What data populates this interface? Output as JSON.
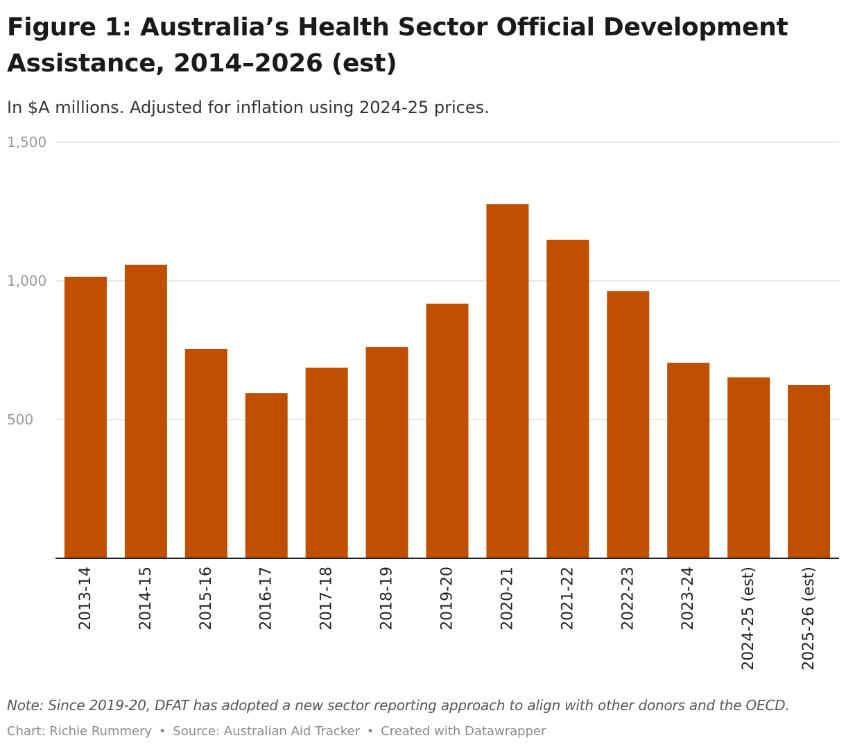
{
  "title": "Figure 1: Australia’s Health Sector Official Development Assistance, 2014–2026 (est)",
  "subtitle": "In $A millions. Adjusted for inflation using 2024-25 prices.",
  "note": "Note: Since 2019-20, DFAT has adopted a new sector reporting approach to align with other donors and the OECD.",
  "credit": {
    "chart": "Chart: Richie Rummery",
    "source": "Source: Australian Aid Tracker",
    "tool": "Created with Datawrapper",
    "separator": "•"
  },
  "colors": {
    "bar": "#c05000",
    "grid": "#e0e0e0",
    "axis": "#222222",
    "tick_label": "#999999",
    "category_label": "#222222"
  },
  "chart_data": {
    "type": "bar",
    "title": "Figure 1: Australia’s Health Sector Official Development Assistance, 2014–2026 (est)",
    "xlabel": "",
    "ylabel": "",
    "ylim": [
      0,
      1500
    ],
    "yticks": [
      500,
      1000,
      1500
    ],
    "ytick_labels": [
      "500",
      "1,000",
      "1,500"
    ],
    "grid": true,
    "legend": "none",
    "categories": [
      "2013-14",
      "2014-15",
      "2015-16",
      "2016-17",
      "2017-18",
      "2018-19",
      "2019-20",
      "2020-21",
      "2021-22",
      "2022-23",
      "2023-24",
      "2024-25 (est)",
      "2025-26 (est)"
    ],
    "values": [
      1015,
      1058,
      755,
      595,
      687,
      762,
      918,
      1277,
      1148,
      963,
      705,
      652,
      625
    ]
  }
}
